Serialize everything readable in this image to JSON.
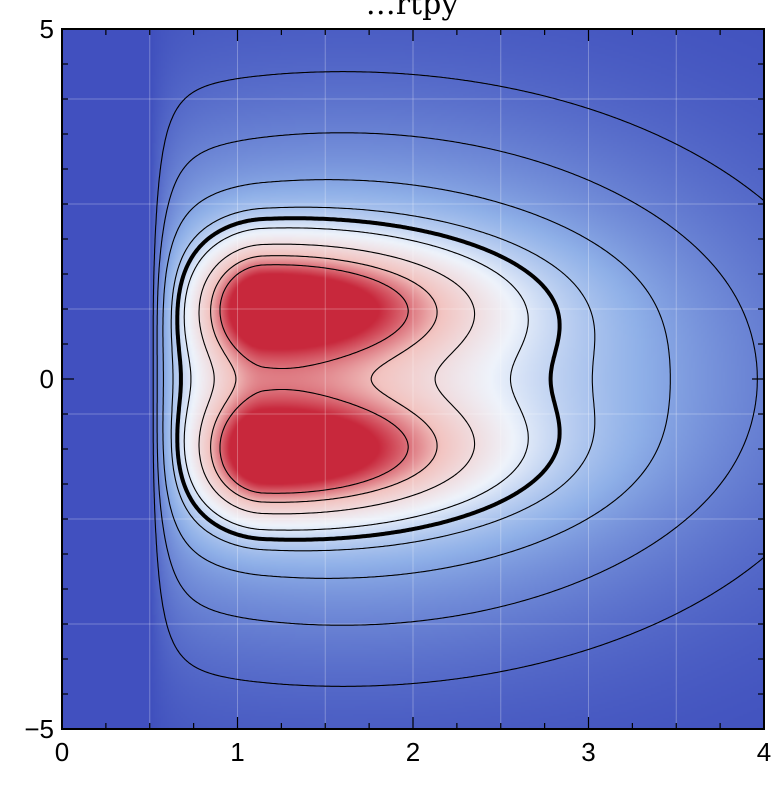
{
  "chart_data": {
    "type": "heatmap",
    "title": "",
    "title_partial": "…rtpy",
    "xlabel": "",
    "ylabel": "",
    "xlim": [
      0,
      4
    ],
    "ylim": [
      -5,
      5
    ],
    "x_ticks": [
      0,
      1,
      2,
      3,
      4
    ],
    "y_ticks": [
      -5,
      0,
      5
    ],
    "x_tick_labels": [
      "0",
      "1",
      "2",
      "3",
      "4"
    ],
    "y_tick_labels": [
      "−5",
      "0",
      "5"
    ],
    "grid": true,
    "colormap": [
      "#3f4fbd",
      "#8fb0e8",
      "#eef3fb",
      "#f2c4c1",
      "#c8283c"
    ],
    "masked_region": {
      "x_max": 0.5,
      "color": "#4150bf"
    },
    "lobes": [
      {
        "name": "upper",
        "peak": [
          1.15,
          1.05
        ],
        "outline_extent": {
          "x": [
            0.6,
            2.75
          ],
          "y": [
            0.5,
            3.0
          ]
        }
      },
      {
        "name": "lower",
        "peak": [
          1.15,
          -1.05
        ],
        "outline_extent": {
          "x": [
            0.6,
            2.75
          ],
          "y": [
            -3.0,
            -0.5
          ]
        }
      }
    ],
    "contours": {
      "solid_lines": true,
      "dashed_bold_level": "lobe boundary"
    }
  }
}
